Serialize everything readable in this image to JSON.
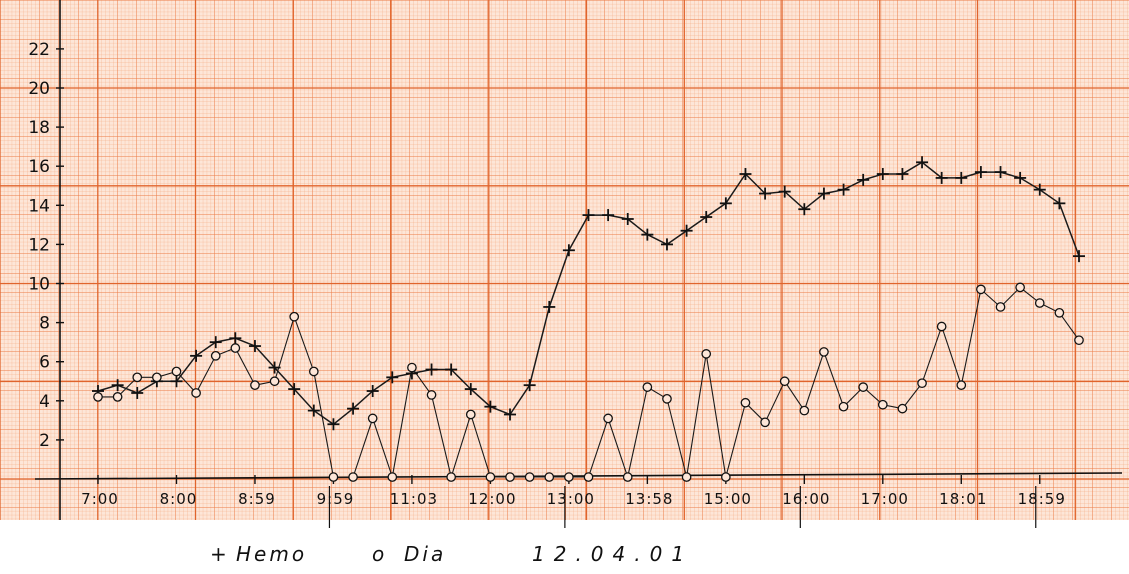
{
  "chart_data": {
    "type": "line",
    "xlabel": "",
    "ylabel": "",
    "ylim": [
      0,
      23
    ],
    "y_ticks": [
      "2",
      "4",
      "6",
      "8",
      "10",
      "12",
      "14",
      "16",
      "18",
      "20",
      "22"
    ],
    "x_ticks": [
      "7:00",
      "8:00",
      "8:59",
      "9:59",
      "11:03",
      "12:00",
      "13:00",
      "13:58",
      "15:00",
      "16:00",
      "17:00",
      "18:01",
      "18:59"
    ],
    "grid": true,
    "legend": {
      "placement": "bottom",
      "entries": [
        {
          "marker": "+",
          "label": "Hemo"
        },
        {
          "marker": "o",
          "label": "Dia"
        }
      ],
      "date": "12.04.01"
    },
    "series": [
      {
        "name": "Hemo",
        "marker": "+",
        "values": [
          4.5,
          4.8,
          4.4,
          5.0,
          5.0,
          6.3,
          7.0,
          7.2,
          6.8,
          5.7,
          4.6,
          3.5,
          2.8,
          3.6,
          4.5,
          5.2,
          5.4,
          5.6,
          5.6,
          4.6,
          3.7,
          3.3,
          4.8,
          8.8,
          11.7,
          13.5,
          13.5,
          13.3,
          12.5,
          12.0,
          12.7,
          13.4,
          14.1,
          15.6,
          14.6,
          14.7,
          13.8,
          14.6,
          14.8,
          15.3,
          15.6,
          15.6,
          16.2,
          15.4,
          15.4,
          15.7,
          15.7,
          15.4,
          14.8,
          14.1,
          11.4
        ]
      },
      {
        "name": "Dia",
        "marker": "o",
        "values": [
          4.2,
          4.2,
          5.2,
          5.2,
          5.5,
          4.4,
          6.3,
          6.7,
          4.8,
          5.0,
          8.3,
          5.5,
          0.1,
          0.1,
          3.1,
          0.1,
          5.7,
          4.3,
          0.1,
          3.3,
          0.1,
          0.1,
          0.1,
          0.1,
          0.1,
          0.1,
          3.1,
          0.1,
          4.7,
          4.1,
          0.1,
          6.4,
          0.1,
          3.9,
          2.9,
          5.0,
          3.5,
          6.5,
          3.7,
          4.7,
          3.8,
          3.6,
          4.9,
          7.8,
          4.8,
          9.7,
          8.8,
          9.8,
          9.0,
          8.5,
          7.1
        ]
      }
    ]
  }
}
